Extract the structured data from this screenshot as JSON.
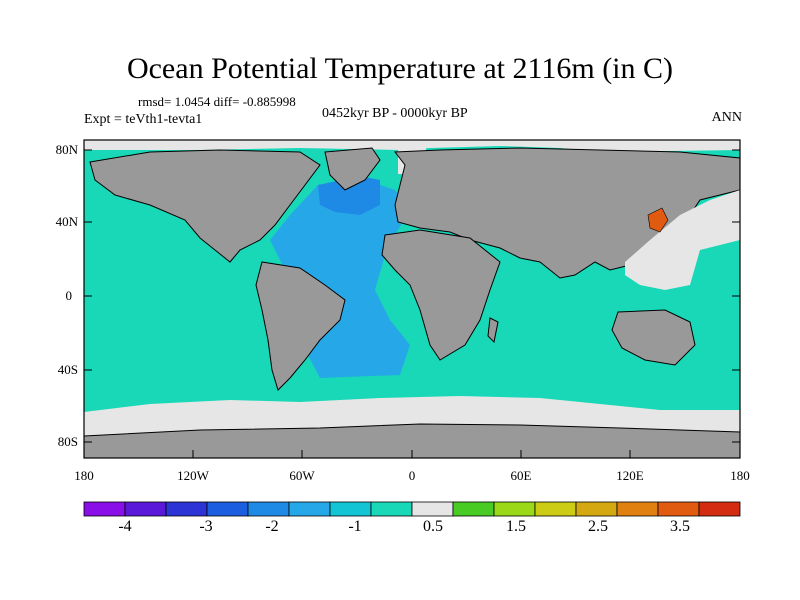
{
  "title": "Ocean Potential Temperature at 2116m (in C)",
  "stats": "rmsd= 1.0454 diff= -0.885998",
  "experiment": "Expt = teVth1-tevta1",
  "period": "0452kyr BP - 0000kyr BP",
  "season": "ANN",
  "lat_labels": [
    "80N",
    "40N",
    "0",
    "40S",
    "80S"
  ],
  "lon_labels": [
    "180",
    "120W",
    "60W",
    "0",
    "60E",
    "120E",
    "180"
  ],
  "colorbar": {
    "colors": [
      "#8a0ee8",
      "#5a18d8",
      "#2c34d6",
      "#1c5ee0",
      "#1f8ae6",
      "#26a8e8",
      "#12c4d4",
      "#18d8b8",
      "#e6e6e6",
      "#48cc24",
      "#9ad818",
      "#cccc14",
      "#d4a810",
      "#e08010",
      "#e05a10",
      "#d42c10"
    ],
    "labels": [
      "-4",
      "-3",
      "-2",
      "-1",
      "0.5",
      "1.5",
      "2.5",
      "3.5"
    ]
  },
  "colors": {
    "ocean": "#18d8b8",
    "land": "#999999",
    "atlantic": "#26a8e8",
    "north_atlantic": "#1f8ae6",
    "sea_ice": "#e6e6e6",
    "warm_anomaly": "#e05a10"
  }
}
